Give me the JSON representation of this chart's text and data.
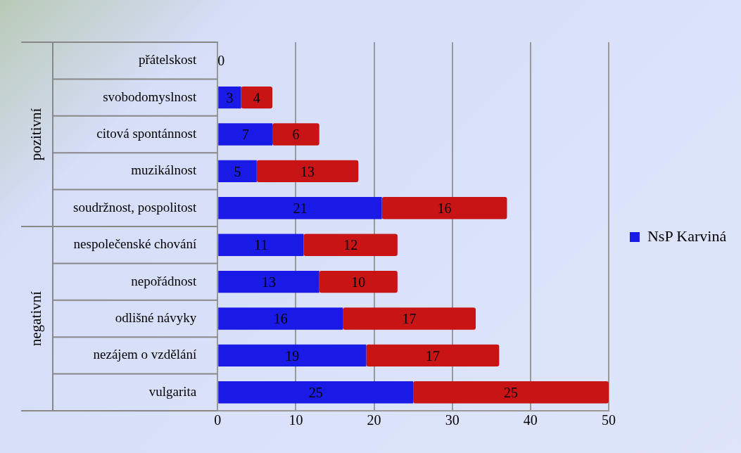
{
  "chart_data": {
    "type": "bar",
    "orientation": "horizontal",
    "stacked": true,
    "categories": [
      "přátelskost",
      "svobodomyslnost",
      "citová spontánnost",
      "muzikálnost",
      "soudržnost, pospolitost",
      "nespolečenské chování",
      "nepořádnost",
      "odlišné návyky",
      "nezájem o vzdělání",
      "vulgarita"
    ],
    "series": [
      {
        "name": "NsP Karviná",
        "color": "#1a1ae6",
        "values": [
          0,
          3,
          7,
          5,
          21,
          11,
          13,
          16,
          19,
          25
        ],
        "value_labels": [
          "0",
          "3",
          "7",
          "5",
          "21",
          "11",
          "13",
          "16",
          "19",
          "25"
        ]
      },
      {
        "color": "#c81414",
        "values": [
          0,
          4,
          6,
          13,
          16,
          12,
          10,
          17,
          17,
          25
        ],
        "value_labels": [
          null,
          "4",
          "6",
          "13",
          "16",
          "12",
          "10",
          "17",
          "17",
          "25"
        ]
      }
    ],
    "xlim": [
      0,
      50
    ],
    "xticks": [
      0,
      10,
      20,
      30,
      40,
      50
    ],
    "grid": "x",
    "legend": "right",
    "annotations": [
      "pozitivní",
      "negativní"
    ]
  }
}
